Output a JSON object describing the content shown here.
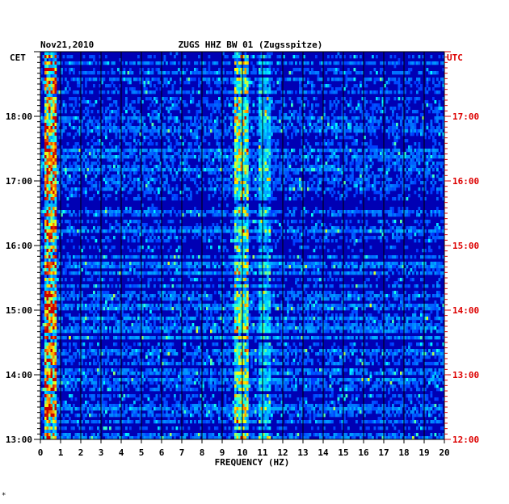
{
  "chart_data": {
    "type": "heatmap",
    "date": "Nov21,2010",
    "title": "ZUGS HHZ BW 01 (Zugsspitze)",
    "xlabel": "FREQUENCY (HZ)",
    "left_axis_label": "CET",
    "right_axis_label": "UTC",
    "x_ticks": [
      0,
      1,
      2,
      3,
      4,
      5,
      6,
      7,
      8,
      9,
      10,
      11,
      12,
      13,
      14,
      15,
      16,
      17,
      18,
      19,
      20
    ],
    "xlim": [
      0,
      20
    ],
    "cet_ticks": [
      "13:00",
      "14:00",
      "15:00",
      "16:00",
      "17:00",
      "18:00"
    ],
    "utc_ticks": [
      "12:00",
      "13:00",
      "14:00",
      "15:00",
      "16:00",
      "17:00"
    ],
    "time_range_cet": [
      "13:00",
      "19:00"
    ],
    "colors": {
      "background": "#0000b4",
      "axis_right_text": "#dd0000",
      "grid": "#000000"
    },
    "features": [
      {
        "freq_hz": [
          0.2,
          0.8
        ],
        "description_level": "high"
      },
      {
        "freq_hz": [
          9.6,
          10.3
        ],
        "description_level": "medium"
      },
      {
        "freq_hz": [
          10.8,
          11.4
        ],
        "description_level": "low"
      }
    ]
  },
  "footnote": "*"
}
